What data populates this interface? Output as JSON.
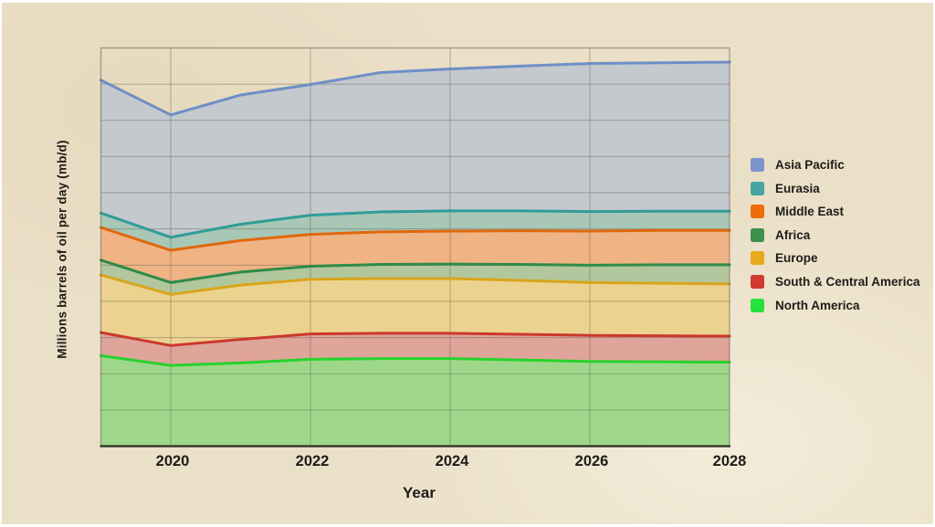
{
  "page": {
    "background_color": "#eadfc7",
    "text_color": "#1d1c18"
  },
  "chart_data": {
    "type": "area",
    "stacked": true,
    "xlabel": "Year",
    "ylabel": "Millions barrels of oil per day (mb/d)",
    "x": [
      2019,
      2020,
      2021,
      2022,
      2023,
      2024,
      2025,
      2026,
      2027,
      2028
    ],
    "x_tick_labels": [
      "2020",
      "2022",
      "2024",
      "2026",
      "2028"
    ],
    "x_tick_years": [
      2020,
      2022,
      2024,
      2026,
      2028
    ],
    "x_grid_years": [
      2020,
      2022,
      2024,
      2026
    ],
    "ylim": [
      0,
      110
    ],
    "grid": true,
    "grid_step": 10,
    "y_tick_labels_shown": false,
    "legend_position": "right",
    "units": "mb/d",
    "series": [
      {
        "name": "North America",
        "values": [
          25.0,
          22.3,
          23.0,
          24.0,
          24.2,
          24.2,
          23.8,
          23.4,
          23.3,
          23.2
        ],
        "line_color": "#26d32c",
        "fill_color": "#9fd78a"
      },
      {
        "name": "South & Central America",
        "values": [
          6.4,
          5.5,
          6.5,
          7.0,
          7.0,
          7.0,
          7.1,
          7.2,
          7.2,
          7.2
        ],
        "line_color": "#cc382e",
        "fill_color": "#dfa49a"
      },
      {
        "name": "Europe",
        "values": [
          15.9,
          14.1,
          15.0,
          15.1,
          15.1,
          15.1,
          14.9,
          14.6,
          14.5,
          14.4
        ],
        "line_color": "#d8a51b",
        "fill_color": "#ecd28f"
      },
      {
        "name": "Africa",
        "values": [
          4.1,
          3.3,
          3.6,
          3.6,
          3.9,
          4.0,
          4.4,
          4.8,
          5.1,
          5.3
        ],
        "line_color": "#2f8b49",
        "fill_color": "#b2c79d"
      },
      {
        "name": "Middle East",
        "values": [
          9.0,
          8.9,
          8.7,
          8.8,
          9.0,
          9.1,
          9.3,
          9.4,
          9.5,
          9.5
        ],
        "line_color": "#e0680d",
        "fill_color": "#efb384"
      },
      {
        "name": "Eurasia",
        "values": [
          4.0,
          3.6,
          4.5,
          5.3,
          5.5,
          5.6,
          5.5,
          5.4,
          5.3,
          5.3
        ],
        "line_color": "#319c97",
        "fill_color": "#a8c7b6"
      },
      {
        "name": "Asia Pacific",
        "values": [
          36.7,
          33.8,
          35.7,
          36.1,
          38.5,
          39.2,
          40.0,
          40.9,
          41.0,
          41.2
        ],
        "line_color": "#6e8fc7",
        "fill_color": "#c4c9ce"
      }
    ]
  },
  "legend": {
    "items": [
      {
        "label": "Asia Pacific",
        "color": "#7b95cb"
      },
      {
        "label": "Eurasia",
        "color": "#45a5a2"
      },
      {
        "label": "Middle East",
        "color": "#ed6c0c"
      },
      {
        "label": "Africa",
        "color": "#3f8f4e"
      },
      {
        "label": "Europe",
        "color": "#e8a91e"
      },
      {
        "label": "South & Central America",
        "color": "#d03a31"
      },
      {
        "label": "North America",
        "color": "#25e23c"
      }
    ]
  }
}
